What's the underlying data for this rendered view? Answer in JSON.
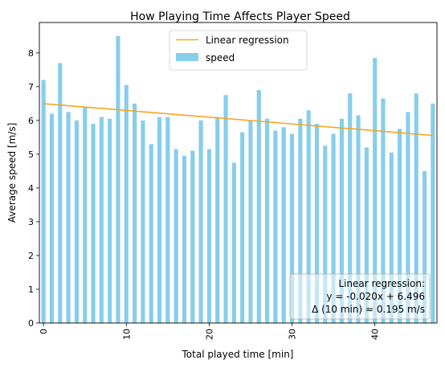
{
  "chart_data": {
    "type": "bar",
    "title": "How Playing Time Affects Player Speed",
    "xlabel": "Total played time [min]",
    "ylabel": "Average speed [m/s]",
    "xlim": [
      -0.5,
      47.5
    ],
    "ylim": [
      0,
      8.9
    ],
    "xticks": [
      0,
      10,
      20,
      30,
      40
    ],
    "yticks": [
      0,
      1,
      2,
      3,
      4,
      5,
      6,
      7,
      8
    ],
    "grid": false,
    "legend_position": "upper-center",
    "series": [
      {
        "name": "speed",
        "color": "#87ceeb",
        "x": [
          0,
          1,
          2,
          3,
          4,
          5,
          6,
          7,
          8,
          9,
          10,
          11,
          12,
          13,
          14,
          15,
          16,
          17,
          18,
          19,
          20,
          21,
          22,
          23,
          24,
          25,
          26,
          27,
          28,
          29,
          30,
          31,
          32,
          33,
          34,
          35,
          36,
          37,
          38,
          39,
          40,
          41,
          42,
          43,
          44,
          45,
          46,
          47
        ],
        "values": [
          7.2,
          6.2,
          7.7,
          6.25,
          6.0,
          6.4,
          5.9,
          6.1,
          6.05,
          8.5,
          7.05,
          6.5,
          6.0,
          5.3,
          6.1,
          6.1,
          5.15,
          4.95,
          5.1,
          6.0,
          5.15,
          6.1,
          6.75,
          4.75,
          5.65,
          6.0,
          6.9,
          6.05,
          5.7,
          5.8,
          5.6,
          6.05,
          6.3,
          5.9,
          5.25,
          5.6,
          6.05,
          6.8,
          6.15,
          5.2,
          7.85,
          6.65,
          5.05,
          5.75,
          6.25,
          6.8,
          4.5,
          6.5
        ]
      }
    ],
    "regression": {
      "name": "Linear regression",
      "color": "#f5a623",
      "slope": -0.02,
      "intercept": 6.496,
      "x_range": [
        0,
        47
      ]
    },
    "annotation": [
      "Linear regression:",
      "y = -0.020x + 6.496",
      "Δ (10 min) ≈ 0.195 m/s"
    ]
  }
}
